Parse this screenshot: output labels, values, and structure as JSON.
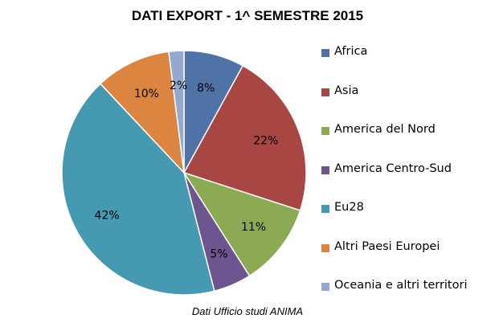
{
  "chart_data": {
    "type": "pie",
    "title": "DATI EXPORT - 1^ SEMESTRE 2015",
    "source": "Dati Ufficio studi ANIMA",
    "legend_position": "right",
    "slices": [
      {
        "name": "Africa",
        "value": 8,
        "label": "8%",
        "color": "#4F73A6"
      },
      {
        "name": "Asia",
        "value": 22,
        "label": "22%",
        "color": "#A84643"
      },
      {
        "name": "America del Nord",
        "value": 11,
        "label": "11%",
        "color": "#8CA953"
      },
      {
        "name": "America Centro-Sud",
        "value": 5,
        "label": "5%",
        "color": "#6D558F"
      },
      {
        "name": "Eu28",
        "value": 42,
        "label": "42%",
        "color": "#4599B1"
      },
      {
        "name": "Altri Paesi Europei",
        "value": 10,
        "label": "10%",
        "color": "#DB8541"
      },
      {
        "name": "Oceania e altri territori",
        "value": 2,
        "label": "2%",
        "color": "#93A9CF"
      }
    ]
  }
}
